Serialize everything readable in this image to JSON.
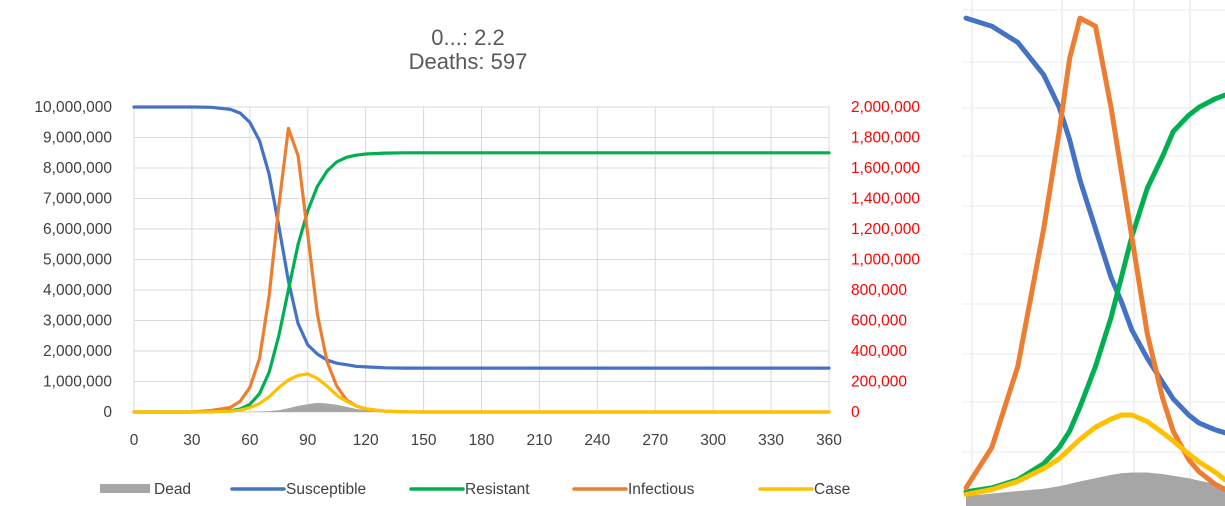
{
  "chart_data": [
    {
      "type": "line",
      "title": "0...: 2.2",
      "subtitle": "Deaths: 597",
      "xlabel": "",
      "ylabel": "",
      "xlim": [
        0,
        360
      ],
      "ylim_left": [
        0,
        10000000
      ],
      "ylim_right": [
        0,
        2000000
      ],
      "x_ticks": [
        "0",
        "30",
        "60",
        "90",
        "120",
        "150",
        "180",
        "210",
        "240",
        "270",
        "300",
        "330",
        "360"
      ],
      "y_left_ticks": [
        "0",
        "1,000,000",
        "2,000,000",
        "3,000,000",
        "4,000,000",
        "5,000,000",
        "6,000,000",
        "7,000,000",
        "8,000,000",
        "9,000,000",
        "10,000,000"
      ],
      "y_right_ticks": [
        "0",
        "200,000",
        "400,000",
        "600,000",
        "800,000",
        "1,000,000",
        "1,200,000",
        "1,400,000",
        "1,600,000",
        "1,800,000",
        "2,000,000"
      ],
      "grid": true,
      "legend_position": "bottom",
      "x": [
        0,
        30,
        40,
        50,
        55,
        60,
        65,
        70,
        75,
        80,
        85,
        90,
        95,
        100,
        105,
        110,
        115,
        120,
        130,
        140,
        150,
        180,
        240,
        300,
        360
      ],
      "series": [
        {
          "name": "Dead",
          "axis": "left",
          "style": "area",
          "color": "#a6a6a6",
          "values": [
            0,
            0,
            0,
            0,
            0,
            5000,
            15000,
            30000,
            60000,
            120000,
            200000,
            260000,
            300000,
            280000,
            240000,
            170000,
            100000,
            60000,
            15000,
            3000,
            0,
            0,
            0,
            0,
            0
          ]
        },
        {
          "name": "Susceptible",
          "axis": "left",
          "color": "#4472c4",
          "values": [
            10000000,
            10000000,
            9990000,
            9920000,
            9800000,
            9500000,
            8900000,
            7800000,
            6100000,
            4300000,
            2900000,
            2200000,
            1900000,
            1700000,
            1600000,
            1550000,
            1500000,
            1480000,
            1450000,
            1440000,
            1440000,
            1440000,
            1440000,
            1440000,
            1440000
          ]
        },
        {
          "name": "Resistant",
          "axis": "left",
          "color": "#00b050",
          "values": [
            0,
            0,
            5000,
            40000,
            100000,
            250000,
            600000,
            1300000,
            2500000,
            4000000,
            5500000,
            6600000,
            7400000,
            7900000,
            8200000,
            8350000,
            8420000,
            8460000,
            8490000,
            8500000,
            8500000,
            8500000,
            8500000,
            8500000,
            8500000
          ]
        },
        {
          "name": "Infectious",
          "axis": "right",
          "color": "#ed7d31",
          "values": [
            0,
            0,
            10000,
            30000,
            70000,
            160000,
            350000,
            760000,
            1350000,
            1860000,
            1680000,
            1160000,
            640000,
            330000,
            170000,
            80000,
            40000,
            20000,
            5000,
            1000,
            0,
            0,
            0,
            0,
            0
          ]
        },
        {
          "name": "Case",
          "axis": "right",
          "color": "#ffc000",
          "values": [
            0,
            0,
            1000,
            5000,
            12000,
            28000,
            55000,
            100000,
            160000,
            210000,
            240000,
            250000,
            220000,
            170000,
            110000,
            70000,
            40000,
            20000,
            5000,
            1000,
            0,
            0,
            0,
            0,
            0
          ]
        }
      ],
      "legend": [
        "Dead",
        "Susceptible",
        "Resistant",
        "Infectious",
        "Case"
      ]
    },
    {
      "type": "line",
      "title": "",
      "grid": true,
      "x": [
        60,
        65,
        70,
        75,
        78,
        80,
        82,
        85,
        88,
        90,
        92,
        95,
        98,
        100,
        103,
        105,
        108,
        110
      ],
      "series": [
        {
          "name": "Dead",
          "style": "area",
          "color": "#a6a6a6",
          "values": [
            0,
            3,
            6,
            9,
            12,
            15,
            18,
            22,
            26,
            28,
            29,
            29,
            27,
            25,
            22,
            19,
            15,
            12
          ]
        },
        {
          "name": "Susceptible",
          "color": "#4472c4",
          "values": [
            590,
            580,
            560,
            520,
            480,
            440,
            390,
            330,
            270,
            240,
            205,
            170,
            140,
            120,
            100,
            90,
            82,
            78
          ]
        },
        {
          "name": "Resistant",
          "color": "#00b050",
          "values": [
            5,
            10,
            20,
            40,
            60,
            80,
            110,
            160,
            220,
            270,
            320,
            380,
            420,
            450,
            470,
            480,
            490,
            495
          ]
        },
        {
          "name": "Infectious",
          "color": "#ed7d31",
          "values": [
            10,
            60,
            160,
            330,
            450,
            540,
            590,
            580,
            480,
            400,
            320,
            200,
            120,
            80,
            45,
            30,
            15,
            8
          ]
        },
        {
          "name": "Case",
          "color": "#ffc000",
          "values": [
            2,
            8,
            18,
            34,
            46,
            58,
            70,
            85,
            95,
            100,
            100,
            92,
            78,
            68,
            52,
            42,
            30,
            20
          ]
        }
      ]
    }
  ]
}
